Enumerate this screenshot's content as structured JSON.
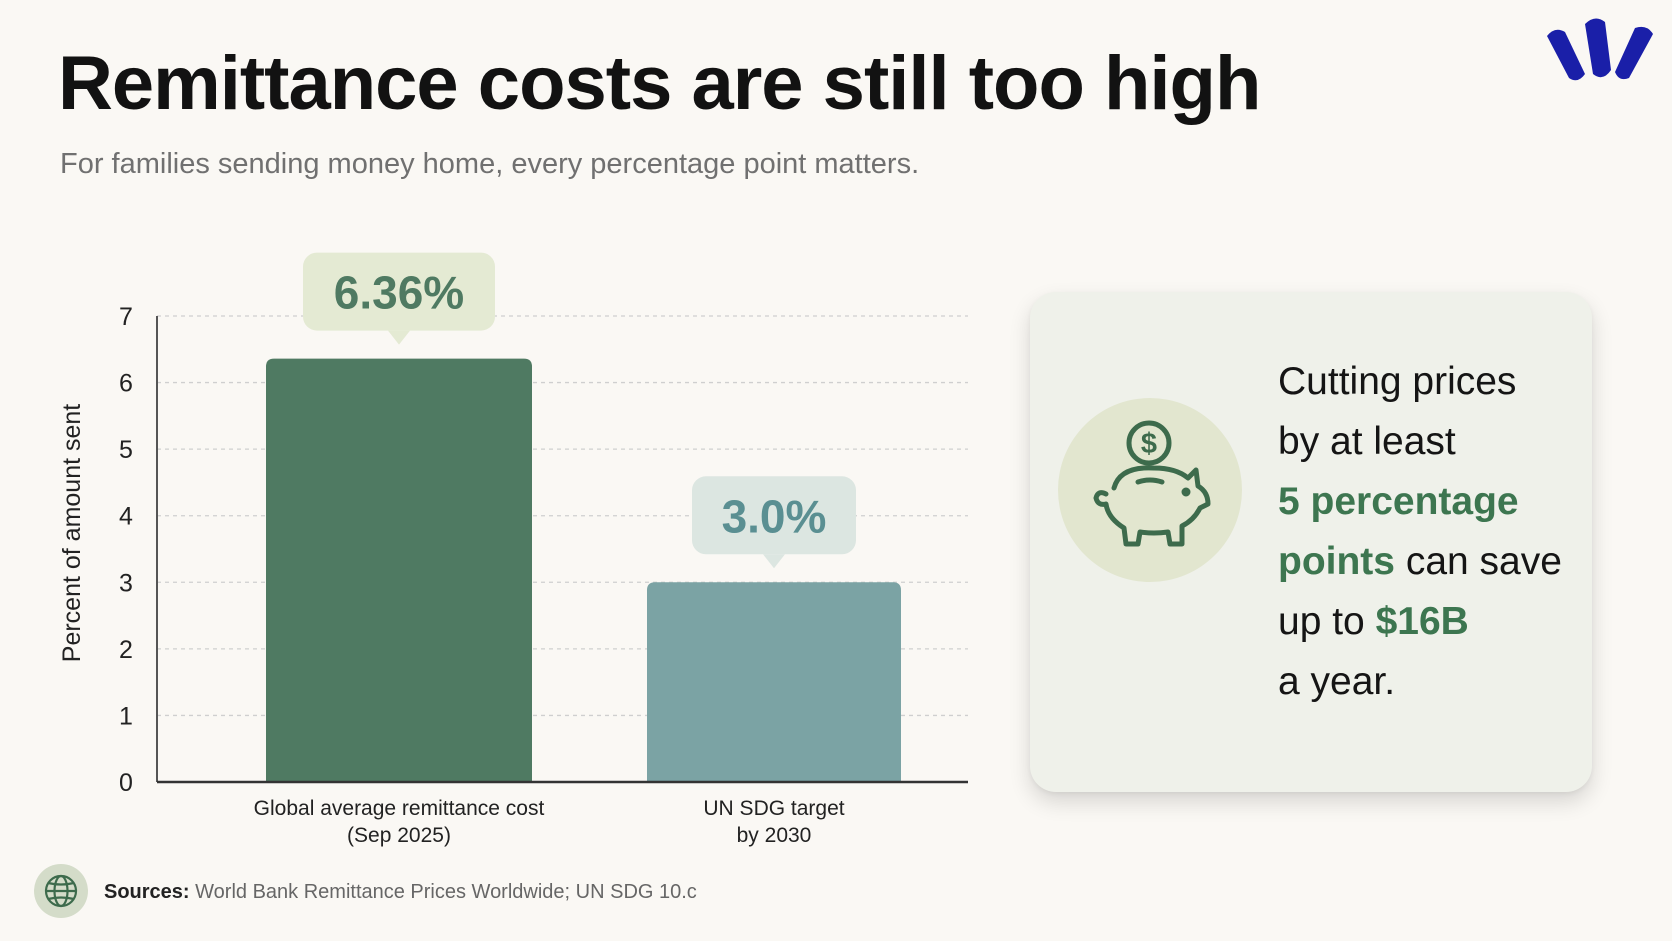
{
  "header": {
    "title": "Remittance costs are still too high",
    "subtitle": "For families sending money home, every percentage point matters."
  },
  "colors": {
    "bar_primary": "#4f7a62",
    "bar_secondary": "#7ba3a4",
    "callout_primary_bg": "#e4ead3",
    "callout_secondary_bg": "#dce6e1",
    "highlight_green": "#3d7650",
    "logo_blue": "#1a1fa8"
  },
  "chart_data": {
    "type": "bar",
    "categories": [
      [
        "Global average remittance cost",
        "(Sep 2025)"
      ],
      [
        "UN SDG target",
        "by 2030"
      ]
    ],
    "values": [
      6.36,
      3.0
    ],
    "value_labels": [
      "6.36%",
      "3.0%"
    ],
    "ylabel": "Percent of amount sent",
    "ylim": [
      0,
      7
    ],
    "yticks": [
      "0",
      "1",
      "2",
      "3",
      "4",
      "5",
      "6",
      "7"
    ],
    "grid": true
  },
  "card": {
    "icon": "piggy-bank-dollar-icon",
    "line1": "Cutting prices",
    "line2": "by at least",
    "highlight1a": "5 percentage",
    "highlight1b": "points",
    "line3": " can save",
    "line4": "up to ",
    "highlight2": "$16B",
    "line5": "a year."
  },
  "footer": {
    "icon": "globe-icon",
    "sources_label": "Sources:",
    "sources_text": " World Bank Remittance Prices Worldwide; UN SDG 10.c"
  }
}
